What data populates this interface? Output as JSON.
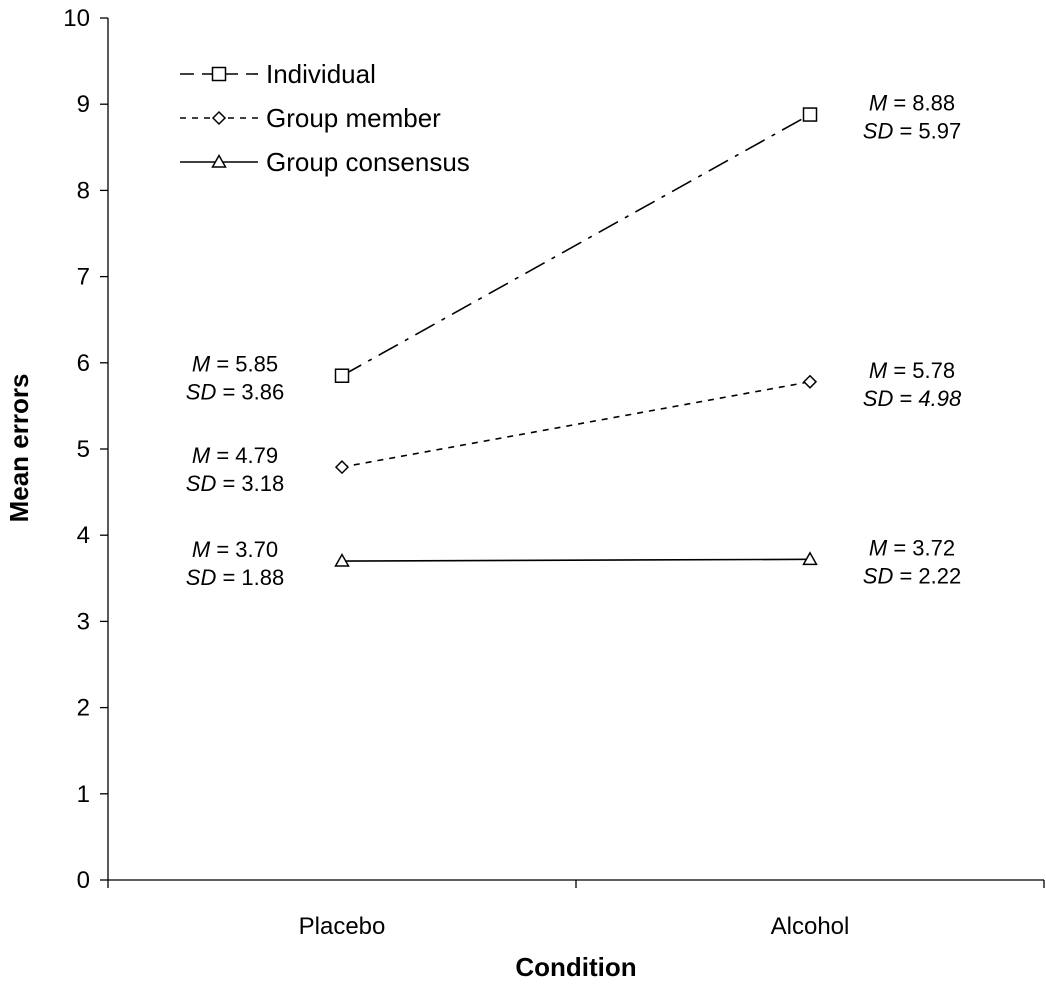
{
  "chart_data": {
    "type": "line",
    "title": "",
    "xlabel": "Condition",
    "ylabel": "Mean errors",
    "categories": [
      "Placebo",
      "Alcohol"
    ],
    "ylim": [
      0,
      10
    ],
    "yticks": [
      0,
      1,
      2,
      3,
      4,
      5,
      6,
      7,
      8,
      9,
      10
    ],
    "grid": false,
    "legend_position": "top-left",
    "series": [
      {
        "name": "Individual",
        "marker": "square",
        "line_style": "dash-dot",
        "values": [
          5.85,
          8.88
        ],
        "sd": [
          3.86,
          5.97
        ]
      },
      {
        "name": "Group member",
        "marker": "diamond",
        "line_style": "dotted",
        "values": [
          4.79,
          5.78
        ],
        "sd": [
          3.18,
          4.98
        ]
      },
      {
        "name": "Group consensus",
        "marker": "triangle",
        "line_style": "solid",
        "values": [
          3.7,
          3.72
        ],
        "sd": [
          1.88,
          2.22
        ]
      }
    ],
    "annotations": [
      {
        "series": 0,
        "point": 0,
        "m": "5.85",
        "sd": "3.86",
        "side": "left"
      },
      {
        "series": 0,
        "point": 1,
        "m": "8.88",
        "sd": "5.97",
        "side": "right"
      },
      {
        "series": 1,
        "point": 0,
        "m": "4.79",
        "sd": "3.18",
        "side": "left"
      },
      {
        "series": 1,
        "point": 1,
        "m": "5.78",
        "sd": "4.98",
        "side": "right",
        "sd_italic": true
      },
      {
        "series": 2,
        "point": 0,
        "m": "3.70",
        "sd": "1.88",
        "side": "left"
      },
      {
        "series": 2,
        "point": 1,
        "m": "3.72",
        "sd": "2.22",
        "side": "right"
      }
    ],
    "annotation_labels": {
      "m": "M",
      "sd": "SD",
      "eq": " = "
    }
  }
}
